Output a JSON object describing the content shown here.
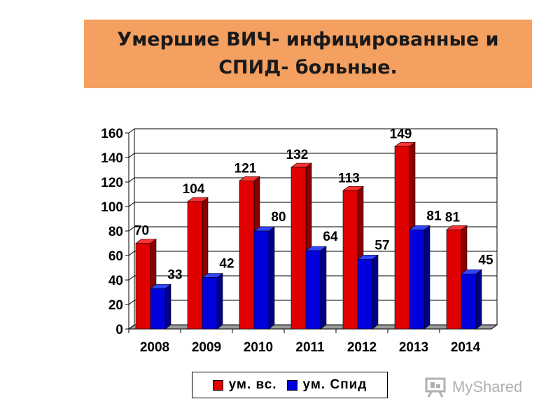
{
  "header": {
    "title": "Умершие ВИЧ- инфицированные и СПИД- больные."
  },
  "chart_data": {
    "type": "bar",
    "categories": [
      "2008",
      "2009",
      "2010",
      "2011",
      "2012",
      "2013",
      "2014"
    ],
    "series": [
      {
        "name": "ум. вс.",
        "values": [
          70,
          104,
          121,
          132,
          113,
          149,
          81
        ],
        "color": "#e00000"
      },
      {
        "name": "ум. Спид",
        "values": [
          33,
          42,
          80,
          64,
          57,
          81,
          45
        ],
        "color": "#0000dd"
      }
    ],
    "ylim": [
      0,
      160
    ],
    "yticks": [
      0,
      20,
      40,
      60,
      80,
      100,
      120,
      140,
      160
    ],
    "grid": true,
    "legend_position": "bottom"
  },
  "legend": {
    "items": [
      {
        "label": "ум. вс.",
        "color": "#e00000"
      },
      {
        "label": "ум. Спид",
        "color": "#0000dd"
      }
    ]
  },
  "watermark": {
    "text": "MyShared"
  }
}
